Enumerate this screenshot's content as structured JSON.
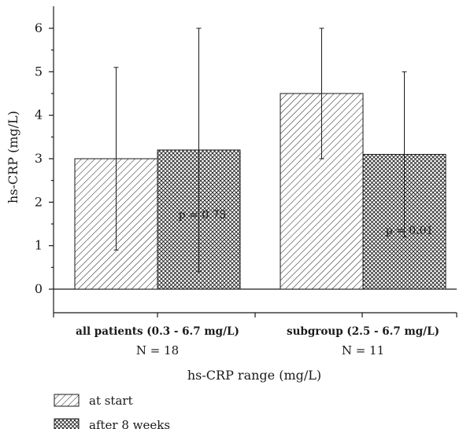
{
  "chart_data": {
    "type": "bar",
    "categories": [
      "all patients (0.3 - 6.7 mg/L)",
      "subgroup (2.5 - 6.7 mg/L)"
    ],
    "category_n": [
      "N = 18",
      "N = 11"
    ],
    "series": [
      {
        "name": "at start",
        "pattern": "diagonal-hatch",
        "values": [
          3.0,
          4.5
        ],
        "error_low": [
          0.9,
          3.0
        ],
        "error_high": [
          5.1,
          6.0
        ]
      },
      {
        "name": "after 8 weeks",
        "pattern": "crosshatch",
        "values": [
          3.2,
          3.1
        ],
        "error_low": [
          0.4,
          1.2
        ],
        "error_high": [
          6.0,
          5.0
        ]
      }
    ],
    "annotations": [
      "p = 0.75",
      "p = 0.01"
    ],
    "xlabel": "hs-CRP range (mg/L)",
    "ylabel": "hs-CRP (mg/L)",
    "ylim": [
      -0.6,
      6.5
    ],
    "yticks": [
      0,
      1,
      2,
      3,
      4,
      5,
      6
    ],
    "grid": false,
    "legend_position": "bottom-left"
  },
  "colors": {
    "ink": "#1a1a1a",
    "background": "#ffffff"
  }
}
